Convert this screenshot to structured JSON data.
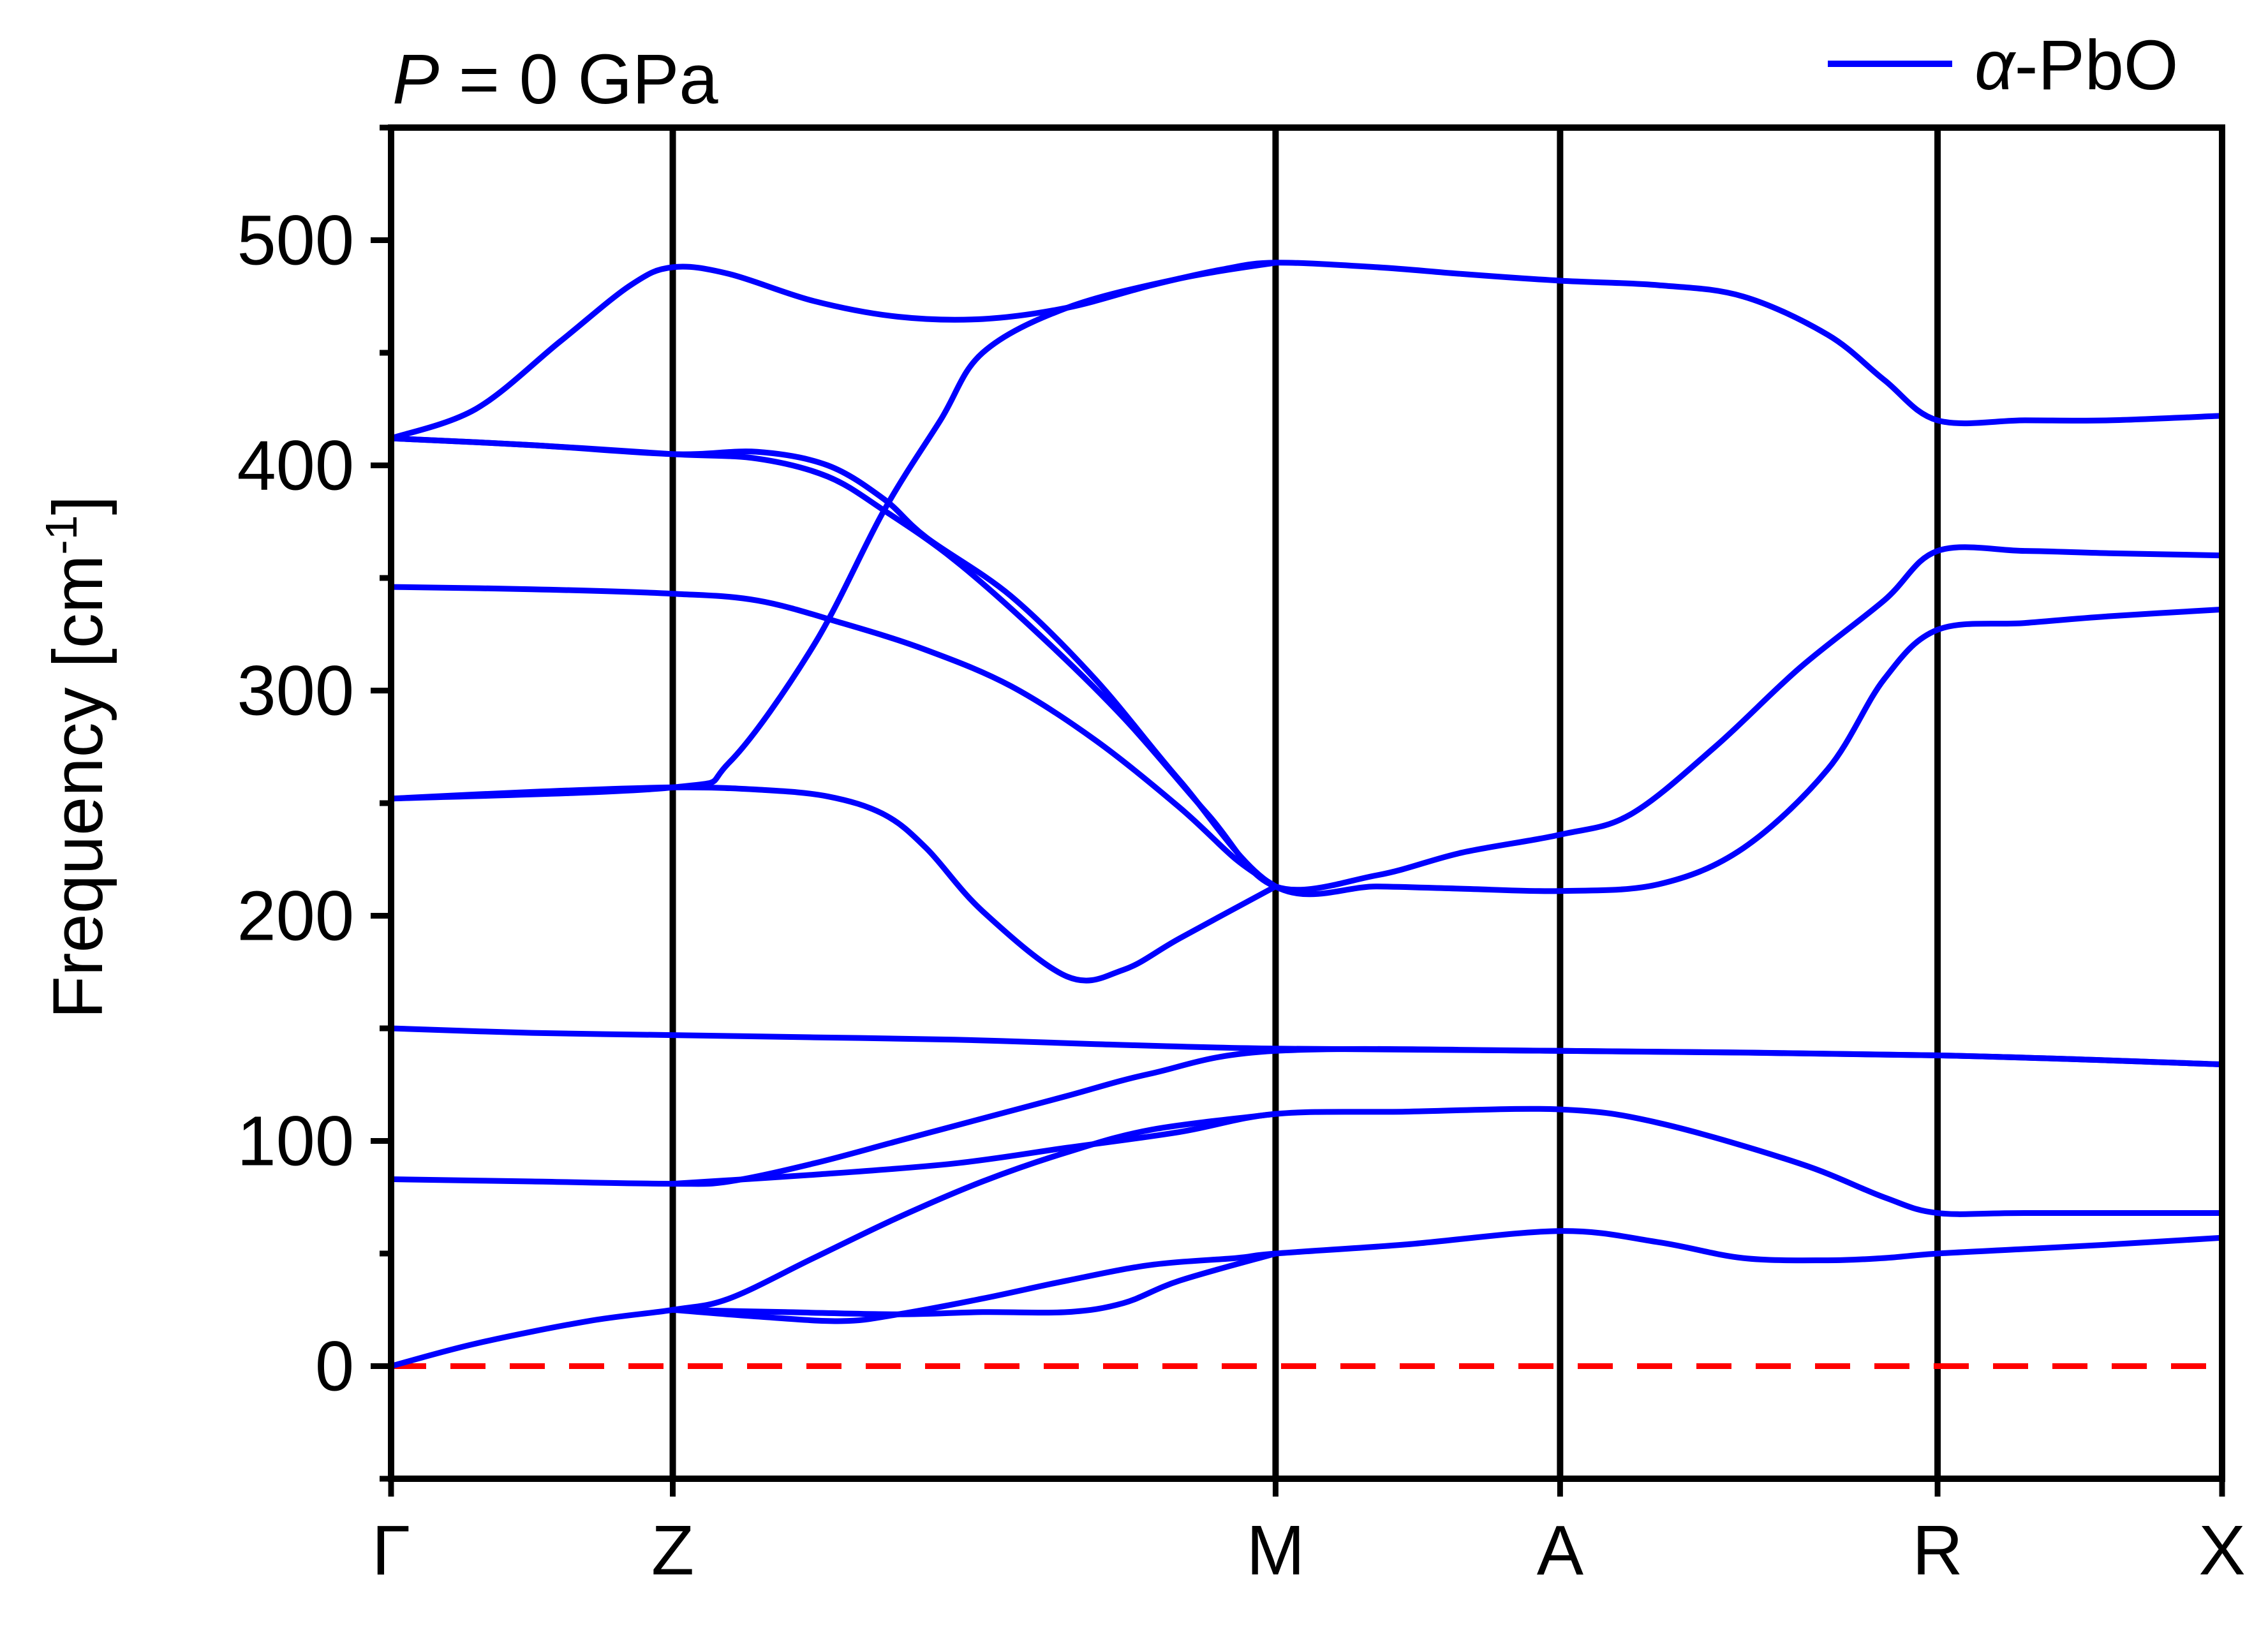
{
  "chart_data": {
    "type": "line",
    "title": "",
    "annotation": {
      "pressure_symbol": "P",
      "pressure_value": " = 0 GPa"
    },
    "ylabel": "Frequency [cm",
    "ylabel_sup": "-1",
    "ylabel_close": "]",
    "xlabel": "",
    "ylim": [
      -50,
      550
    ],
    "xlim": [
      0,
      6.5
    ],
    "yticks": [
      0,
      100,
      200,
      300,
      400,
      500
    ],
    "ytick_labels": [
      "0",
      "100",
      "200",
      "300",
      "400",
      "500"
    ],
    "high_symmetry_points": [
      {
        "label": "Γ",
        "x": 0
      },
      {
        "label": "Z",
        "x": 1
      },
      {
        "label": "M",
        "x": 3.14
      },
      {
        "label": "A",
        "x": 4.15
      },
      {
        "label": "R",
        "x": 5.49
      },
      {
        "label": "X",
        "x": 6.5
      }
    ],
    "legend": {
      "position": "top-right",
      "greek": "α",
      "rest": "-PbO"
    },
    "colors": {
      "bands": "#0000ff",
      "reference": "#ff0000",
      "axes": "#000000"
    },
    "reference_line": {
      "y": 0,
      "style": "dashed"
    },
    "series": [
      {
        "x": [
          0,
          0.3,
          0.6,
          0.85,
          1.0,
          1.2,
          1.5,
          1.8,
          2.1,
          2.4,
          2.7,
          2.95,
          3.14,
          3.5,
          3.8,
          4.15,
          4.5,
          4.8,
          5.1,
          5.3,
          5.49,
          5.8,
          6.1,
          6.5
        ],
        "y": [
          412,
          425,
          455,
          480,
          488,
          485,
          473,
          466,
          465,
          470,
          480,
          487,
          490,
          488,
          485,
          482,
          480,
          475,
          458,
          438,
          420,
          420,
          420,
          422
        ]
      },
      {
        "x": [
          0,
          0.5,
          1.0,
          1.3,
          1.55,
          1.75,
          1.9,
          2.2,
          2.5,
          2.8,
          3.14,
          3.5,
          3.8,
          4.15,
          4.5,
          4.8,
          5.1,
          5.3,
          5.49,
          5.8,
          6.1,
          6.5
        ],
        "y": [
          412,
          409,
          405,
          406,
          400,
          385,
          368,
          342,
          305,
          260,
          213,
          213,
          212,
          211,
          214,
          230,
          265,
          305,
          327,
          330,
          333,
          336
        ]
      },
      {
        "x": [
          0,
          0.5,
          1.0,
          1.3,
          1.55,
          1.75,
          2.0,
          2.3,
          2.6,
          2.9,
          3.14,
          3.5,
          3.8,
          4.15,
          4.4,
          4.7,
          5.0,
          5.3,
          5.49,
          5.8,
          6.1,
          6.5
        ],
        "y": [
          412,
          409,
          405,
          403,
          395,
          380,
          358,
          325,
          288,
          245,
          213,
          218,
          228,
          236,
          245,
          275,
          310,
          340,
          362,
          362,
          361,
          360
        ]
      },
      {
        "x": [
          0,
          0.5,
          1.0,
          1.3,
          1.6,
          1.9,
          2.2,
          2.5,
          2.8,
          3.0,
          3.14
        ],
        "y": [
          346,
          345,
          343,
          340,
          330,
          318,
          302,
          278,
          248,
          225,
          213
        ]
      },
      {
        "x": [
          0,
          0.5,
          1.0,
          1.3,
          1.55,
          1.75,
          1.9,
          2.1,
          2.4,
          2.6,
          2.8,
          3.14
        ],
        "y": [
          252,
          255,
          257,
          256,
          253,
          245,
          230,
          202,
          173,
          176,
          190,
          213
        ]
      },
      {
        "x": [
          0,
          1.0,
          1.2,
          1.5,
          1.75,
          1.95,
          2.1,
          2.4,
          2.8,
          3.14
        ],
        "y": [
          252,
          257,
          268,
          320,
          380,
          420,
          450,
          470,
          483,
          490
        ]
      },
      {
        "x": [
          0,
          0.5,
          1.0,
          1.5,
          2.0,
          2.5,
          3.14,
          4.15,
          5.49,
          6.5
        ],
        "y": [
          150,
          148,
          147,
          146,
          145,
          143,
          141,
          140,
          138,
          134
        ]
      },
      {
        "x": [
          0,
          0.5,
          1.0,
          1.2,
          1.5,
          1.8,
          2.1,
          2.4,
          2.7,
          3.14,
          4.15,
          5.49,
          6.5
        ],
        "y": [
          83,
          82,
          81,
          82,
          90,
          100,
          110,
          120,
          130,
          140,
          140,
          138,
          134
        ]
      },
      {
        "x": [
          1.0,
          1.5,
          2.0,
          2.4,
          2.8,
          3.14,
          3.6,
          4.15,
          4.5,
          5.0,
          5.3,
          5.49,
          5.8,
          6.5
        ],
        "y": [
          81,
          85,
          90,
          97,
          104,
          112,
          113,
          114,
          108,
          90,
          75,
          68,
          68,
          68
        ]
      },
      {
        "x": [
          0,
          0.3,
          0.7,
          1.0,
          1.2,
          1.5,
          1.8,
          2.1,
          2.4,
          2.7,
          3.14
        ],
        "y": [
          0,
          10,
          20,
          25,
          30,
          48,
          66,
          82,
          95,
          105,
          112
        ]
      },
      {
        "x": [
          1.0,
          1.3,
          1.6,
          1.8,
          2.1,
          2.4,
          2.7,
          3.0,
          3.14,
          3.6,
          4.15,
          4.5,
          4.8,
          5.1,
          5.3,
          5.49,
          5.8,
          6.1,
          6.5
        ],
        "y": [
          25,
          22,
          20,
          23,
          30,
          38,
          45,
          48,
          50,
          54,
          60,
          55,
          48,
          47,
          48,
          50,
          52,
          54,
          57
        ]
      },
      {
        "x": [
          1.0,
          1.4,
          1.8,
          2.1,
          2.4,
          2.6,
          2.8,
          3.14
        ],
        "y": [
          25,
          24,
          23,
          24,
          24,
          28,
          38,
          50
        ]
      }
    ]
  }
}
